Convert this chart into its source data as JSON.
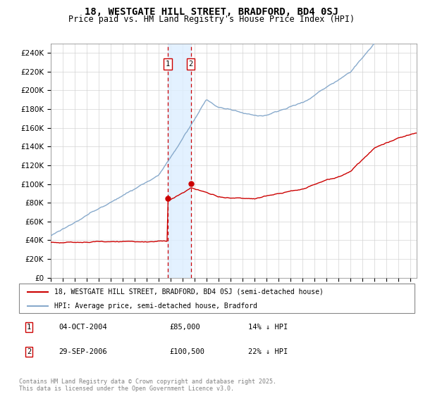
{
  "title": "18, WESTGATE HILL STREET, BRADFORD, BD4 0SJ",
  "subtitle": "Price paid vs. HM Land Registry's House Price Index (HPI)",
  "legend_entries": [
    "18, WESTGATE HILL STREET, BRADFORD, BD4 0SJ (semi-detached house)",
    "HPI: Average price, semi-detached house, Bradford"
  ],
  "transaction1": {
    "label": "1",
    "date": "04-OCT-2004",
    "price": 85000,
    "note": "14% ↓ HPI"
  },
  "transaction2": {
    "label": "2",
    "date": "29-SEP-2006",
    "price": 100500,
    "note": "22% ↓ HPI"
  },
  "copyright": "Contains HM Land Registry data © Crown copyright and database right 2025.\nThis data is licensed under the Open Government Licence v3.0.",
  "line_color_property": "#cc0000",
  "line_color_hpi": "#88aacc",
  "shade_color": "#ddeeff",
  "dashed_color": "#cc0000",
  "ylim": [
    0,
    250000
  ],
  "ytick_step": 20000,
  "t1_year": 2004.75,
  "t2_year": 2006.67,
  "t1_price": 85000,
  "t2_price": 100500
}
